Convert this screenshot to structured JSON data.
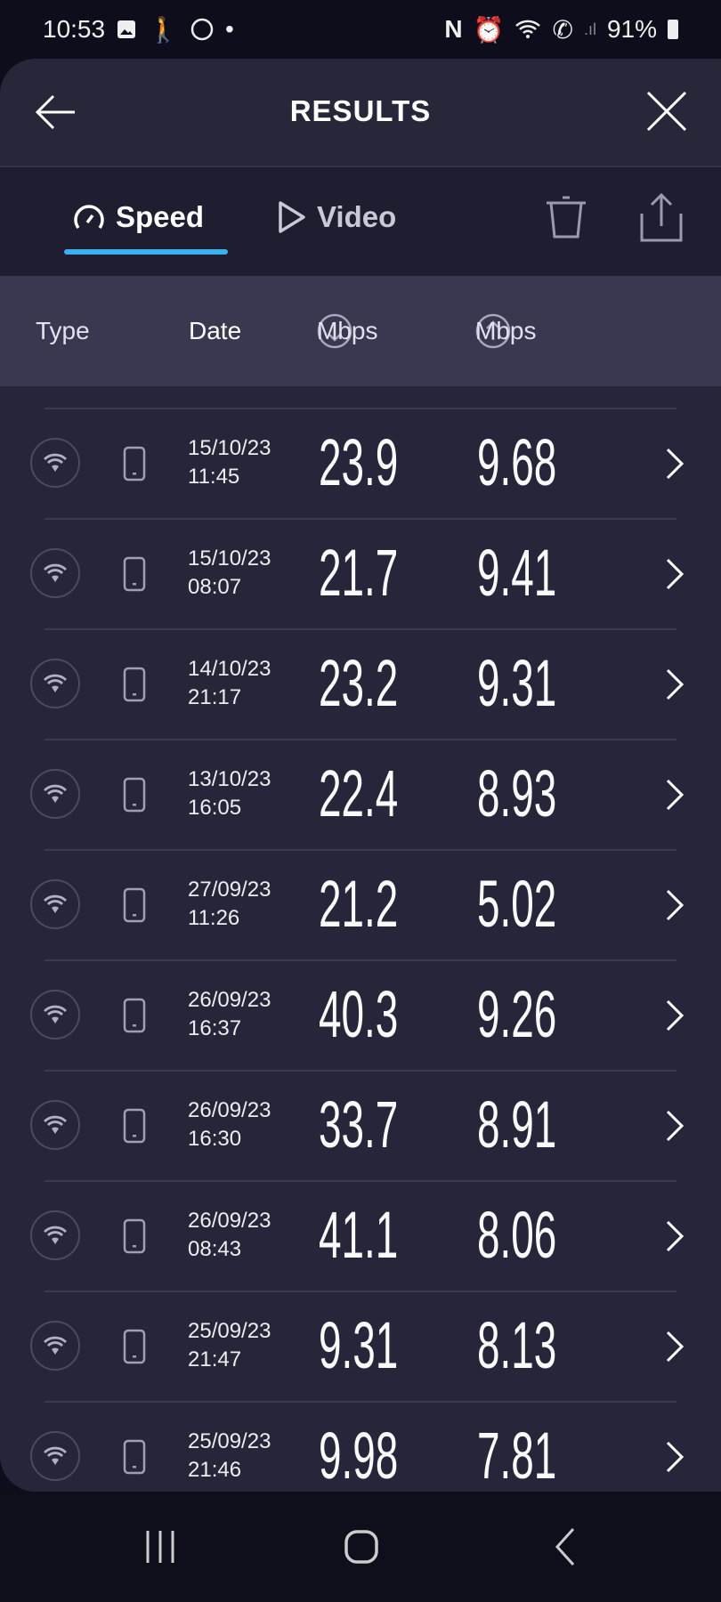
{
  "status_bar": {
    "time": "10:53",
    "battery": "91%",
    "icons_left": [
      "gallery-icon",
      "walking-icon",
      "whatsapp-icon",
      "dot-icon"
    ],
    "icons_right": [
      "nfc-icon",
      "alarm-icon",
      "wifi-icon",
      "wifi-calling-icon",
      "signal-icon",
      "battery-icon"
    ]
  },
  "header": {
    "title": "RESULTS"
  },
  "tabs": [
    {
      "label": "Speed",
      "icon": "speedometer-icon",
      "active": true
    },
    {
      "label": "Video",
      "icon": "play-icon",
      "active": false
    }
  ],
  "accent": "#3cb0ee",
  "columns": {
    "type": "Type",
    "date": "Date",
    "download": "Mbps",
    "upload": "Mbps"
  },
  "rows": [
    {
      "date": "15/10/23",
      "time": "11:45",
      "download": "23.9",
      "upload": "9.68"
    },
    {
      "date": "15/10/23",
      "time": "08:07",
      "download": "21.7",
      "upload": "9.41"
    },
    {
      "date": "14/10/23",
      "time": "21:17",
      "download": "23.2",
      "upload": "9.31"
    },
    {
      "date": "13/10/23",
      "time": "16:05",
      "download": "22.4",
      "upload": "8.93"
    },
    {
      "date": "27/09/23",
      "time": "11:26",
      "download": "21.2",
      "upload": "5.02"
    },
    {
      "date": "26/09/23",
      "time": "16:37",
      "download": "40.3",
      "upload": "9.26"
    },
    {
      "date": "26/09/23",
      "time": "16:30",
      "download": "33.7",
      "upload": "8.91"
    },
    {
      "date": "26/09/23",
      "time": "08:43",
      "download": "41.1",
      "upload": "8.06"
    },
    {
      "date": "25/09/23",
      "time": "21:47",
      "download": "9.31",
      "upload": "8.13"
    },
    {
      "date": "25/09/23",
      "time": "21:46",
      "download": "9.98",
      "upload": "7.81"
    }
  ]
}
